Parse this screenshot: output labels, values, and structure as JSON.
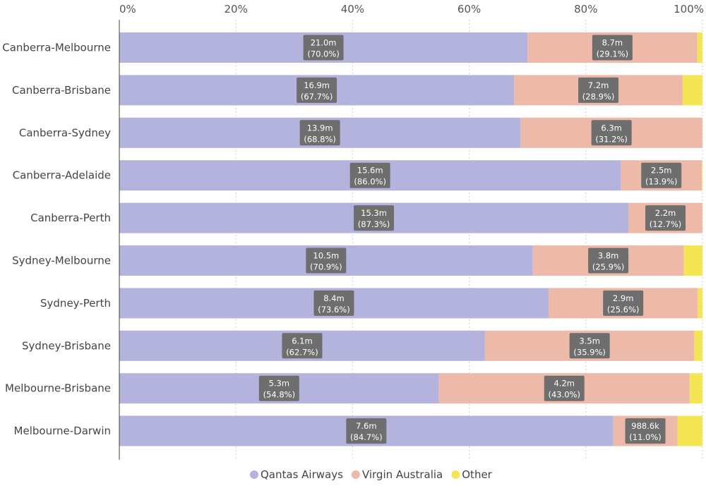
{
  "chart_data": {
    "type": "bar",
    "orientation": "horizontal",
    "stacking": "percent",
    "xlim": [
      0,
      100
    ],
    "xticks": [
      "0%",
      "20%",
      "40%",
      "60%",
      "80%",
      "100%"
    ],
    "grid": "vertical dashed",
    "legend_position": "bottom-center",
    "categories": [
      "Canberra-Melbourne",
      "Canberra-Brisbane",
      "Canberra-Sydney",
      "Canberra-Adelaide",
      "Canberra-Perth",
      "Sydney-Melbourne",
      "Sydney-Perth",
      "Sydney-Brisbane",
      "Melbourne-Brisbane",
      "Melbourne-Darwin"
    ],
    "series": [
      {
        "name": "Qantas Airways",
        "color": "#B3B3DE",
        "values": [
          70.0,
          67.7,
          68.8,
          86.0,
          87.3,
          70.9,
          73.6,
          62.7,
          54.8,
          84.7
        ],
        "value_labels": [
          "21.0m",
          "16.9m",
          "13.9m",
          "15.6m",
          "15.3m",
          "10.5m",
          "8.4m",
          "6.1m",
          "5.3m",
          "7.6m"
        ],
        "pct_labels": [
          "(70.0%)",
          "(67.7%)",
          "(68.8%)",
          "(86.0%)",
          "(87.3%)",
          "(70.9%)",
          "(73.6%)",
          "(62.7%)",
          "(54.8%)",
          "(84.7%)"
        ]
      },
      {
        "name": "Virgin Australia",
        "color": "#EDB9A8",
        "values": [
          29.1,
          28.9,
          31.2,
          13.9,
          12.7,
          25.9,
          25.6,
          35.9,
          43.0,
          11.0
        ],
        "value_labels": [
          "8.7m",
          "7.2m",
          "6.3m",
          "2.5m",
          "2.2m",
          "3.8m",
          "2.9m",
          "3.5m",
          "4.2m",
          "988.6k"
        ],
        "pct_labels": [
          "(29.1%)",
          "(28.9%)",
          "(31.2%)",
          "(13.9%)",
          "(12.7%)",
          "(25.9%)",
          "(25.6%)",
          "(35.9%)",
          "(43.0%)",
          "(11.0%)"
        ]
      },
      {
        "name": "Other",
        "color": "#F4E653",
        "values": [
          0.9,
          3.4,
          0.0,
          0.1,
          0.0,
          3.2,
          0.8,
          1.4,
          2.2,
          4.3
        ],
        "value_labels": [],
        "pct_labels": []
      }
    ]
  },
  "colors": {
    "label_box": "#6E6E6E",
    "grid": "#D0D0D0",
    "axis": "#444444"
  }
}
